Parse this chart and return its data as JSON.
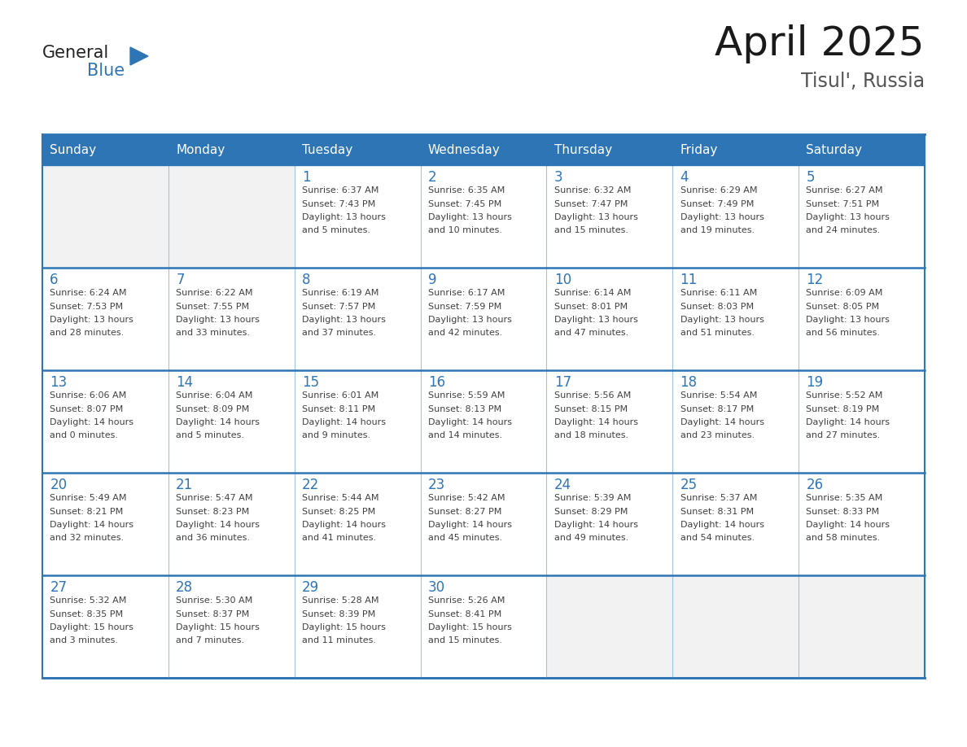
{
  "title": "April 2025",
  "subtitle": "Tisul', Russia",
  "header_bg": "#2E75B6",
  "header_text_color": "#FFFFFF",
  "cell_bg": "#FFFFFF",
  "cell_empty_bg": "#F2F2F2",
  "border_color_outer": "#2E75B6",
  "border_color_inner": "#9DC3E6",
  "row_separator_color": "#2E75B6",
  "day_number_color": "#2E75B6",
  "cell_text_color": "#404040",
  "days_of_week": [
    "Sunday",
    "Monday",
    "Tuesday",
    "Wednesday",
    "Thursday",
    "Friday",
    "Saturday"
  ],
  "logo_text_general_color": "#222222",
  "logo_text_blue_color": "#2E75B6",
  "logo_triangle_color": "#2E75B6",
  "title_color": "#1a1a1a",
  "subtitle_color": "#555555",
  "weeks": [
    [
      {
        "day": "",
        "info": ""
      },
      {
        "day": "",
        "info": ""
      },
      {
        "day": "1",
        "info": "Sunrise: 6:37 AM\nSunset: 7:43 PM\nDaylight: 13 hours\nand 5 minutes."
      },
      {
        "day": "2",
        "info": "Sunrise: 6:35 AM\nSunset: 7:45 PM\nDaylight: 13 hours\nand 10 minutes."
      },
      {
        "day": "3",
        "info": "Sunrise: 6:32 AM\nSunset: 7:47 PM\nDaylight: 13 hours\nand 15 minutes."
      },
      {
        "day": "4",
        "info": "Sunrise: 6:29 AM\nSunset: 7:49 PM\nDaylight: 13 hours\nand 19 minutes."
      },
      {
        "day": "5",
        "info": "Sunrise: 6:27 AM\nSunset: 7:51 PM\nDaylight: 13 hours\nand 24 minutes."
      }
    ],
    [
      {
        "day": "6",
        "info": "Sunrise: 6:24 AM\nSunset: 7:53 PM\nDaylight: 13 hours\nand 28 minutes."
      },
      {
        "day": "7",
        "info": "Sunrise: 6:22 AM\nSunset: 7:55 PM\nDaylight: 13 hours\nand 33 minutes."
      },
      {
        "day": "8",
        "info": "Sunrise: 6:19 AM\nSunset: 7:57 PM\nDaylight: 13 hours\nand 37 minutes."
      },
      {
        "day": "9",
        "info": "Sunrise: 6:17 AM\nSunset: 7:59 PM\nDaylight: 13 hours\nand 42 minutes."
      },
      {
        "day": "10",
        "info": "Sunrise: 6:14 AM\nSunset: 8:01 PM\nDaylight: 13 hours\nand 47 minutes."
      },
      {
        "day": "11",
        "info": "Sunrise: 6:11 AM\nSunset: 8:03 PM\nDaylight: 13 hours\nand 51 minutes."
      },
      {
        "day": "12",
        "info": "Sunrise: 6:09 AM\nSunset: 8:05 PM\nDaylight: 13 hours\nand 56 minutes."
      }
    ],
    [
      {
        "day": "13",
        "info": "Sunrise: 6:06 AM\nSunset: 8:07 PM\nDaylight: 14 hours\nand 0 minutes."
      },
      {
        "day": "14",
        "info": "Sunrise: 6:04 AM\nSunset: 8:09 PM\nDaylight: 14 hours\nand 5 minutes."
      },
      {
        "day": "15",
        "info": "Sunrise: 6:01 AM\nSunset: 8:11 PM\nDaylight: 14 hours\nand 9 minutes."
      },
      {
        "day": "16",
        "info": "Sunrise: 5:59 AM\nSunset: 8:13 PM\nDaylight: 14 hours\nand 14 minutes."
      },
      {
        "day": "17",
        "info": "Sunrise: 5:56 AM\nSunset: 8:15 PM\nDaylight: 14 hours\nand 18 minutes."
      },
      {
        "day": "18",
        "info": "Sunrise: 5:54 AM\nSunset: 8:17 PM\nDaylight: 14 hours\nand 23 minutes."
      },
      {
        "day": "19",
        "info": "Sunrise: 5:52 AM\nSunset: 8:19 PM\nDaylight: 14 hours\nand 27 minutes."
      }
    ],
    [
      {
        "day": "20",
        "info": "Sunrise: 5:49 AM\nSunset: 8:21 PM\nDaylight: 14 hours\nand 32 minutes."
      },
      {
        "day": "21",
        "info": "Sunrise: 5:47 AM\nSunset: 8:23 PM\nDaylight: 14 hours\nand 36 minutes."
      },
      {
        "day": "22",
        "info": "Sunrise: 5:44 AM\nSunset: 8:25 PM\nDaylight: 14 hours\nand 41 minutes."
      },
      {
        "day": "23",
        "info": "Sunrise: 5:42 AM\nSunset: 8:27 PM\nDaylight: 14 hours\nand 45 minutes."
      },
      {
        "day": "24",
        "info": "Sunrise: 5:39 AM\nSunset: 8:29 PM\nDaylight: 14 hours\nand 49 minutes."
      },
      {
        "day": "25",
        "info": "Sunrise: 5:37 AM\nSunset: 8:31 PM\nDaylight: 14 hours\nand 54 minutes."
      },
      {
        "day": "26",
        "info": "Sunrise: 5:35 AM\nSunset: 8:33 PM\nDaylight: 14 hours\nand 58 minutes."
      }
    ],
    [
      {
        "day": "27",
        "info": "Sunrise: 5:32 AM\nSunset: 8:35 PM\nDaylight: 15 hours\nand 3 minutes."
      },
      {
        "day": "28",
        "info": "Sunrise: 5:30 AM\nSunset: 8:37 PM\nDaylight: 15 hours\nand 7 minutes."
      },
      {
        "day": "29",
        "info": "Sunrise: 5:28 AM\nSunset: 8:39 PM\nDaylight: 15 hours\nand 11 minutes."
      },
      {
        "day": "30",
        "info": "Sunrise: 5:26 AM\nSunset: 8:41 PM\nDaylight: 15 hours\nand 15 minutes."
      },
      {
        "day": "",
        "info": ""
      },
      {
        "day": "",
        "info": ""
      },
      {
        "day": "",
        "info": ""
      }
    ]
  ]
}
